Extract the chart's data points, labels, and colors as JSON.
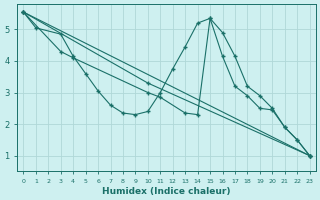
{
  "xlabel": "Humidex (Indice chaleur)",
  "bg_color": "#cef0f0",
  "line_color": "#1a7068",
  "grid_color": "#b0d8d8",
  "xlim": [
    -0.5,
    23.5
  ],
  "ylim": [
    0.5,
    5.8
  ],
  "yticks": [
    1,
    2,
    3,
    4,
    5
  ],
  "xticks": [
    0,
    1,
    2,
    3,
    4,
    5,
    6,
    7,
    8,
    9,
    10,
    11,
    12,
    13,
    14,
    15,
    16,
    17,
    18,
    19,
    20,
    21,
    22,
    23
  ],
  "series": [
    {
      "x": [
        0,
        1,
        3,
        4,
        5,
        6,
        7,
        8,
        9,
        10,
        11,
        12,
        13,
        14,
        15,
        16,
        17,
        18,
        19,
        20,
        21,
        22,
        23
      ],
      "y": [
        5.55,
        5.05,
        4.85,
        4.15,
        3.6,
        3.05,
        2.6,
        2.35,
        2.3,
        2.4,
        3.0,
        3.75,
        4.45,
        5.2,
        5.35,
        4.9,
        4.15,
        3.2,
        2.9,
        2.5,
        1.9,
        1.5,
        1.0
      ]
    },
    {
      "x": [
        0,
        3,
        4,
        10,
        11,
        13,
        14,
        15,
        16,
        17,
        18,
        19,
        20,
        21,
        22,
        23
      ],
      "y": [
        5.55,
        4.3,
        4.1,
        3.0,
        2.85,
        2.35,
        2.3,
        5.35,
        4.15,
        3.2,
        2.9,
        2.5,
        2.45,
        1.9,
        1.5,
        1.0
      ]
    },
    {
      "x": [
        0,
        23
      ],
      "y": [
        5.55,
        1.0
      ]
    },
    {
      "x": [
        0,
        10,
        23
      ],
      "y": [
        5.55,
        3.3,
        1.0
      ]
    }
  ]
}
